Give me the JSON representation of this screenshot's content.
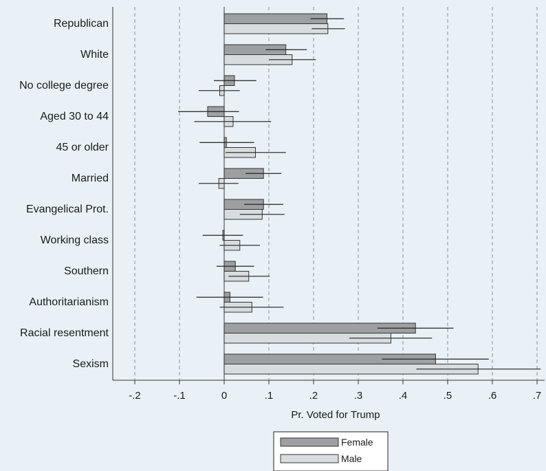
{
  "chart_data": {
    "type": "bar",
    "orientation": "horizontal",
    "xlabel": "Pr. Voted for Trump",
    "xlim": [
      -0.25,
      0.72
    ],
    "x_ticks": [
      {
        "value": -0.2,
        "label": "-.2"
      },
      {
        "value": -0.1,
        "label": "-.1"
      },
      {
        "value": 0,
        "label": "0"
      },
      {
        "value": 0.1,
        "label": ".1"
      },
      {
        "value": 0.2,
        "label": ".2"
      },
      {
        "value": 0.3,
        "label": ".3"
      },
      {
        "value": 0.4,
        "label": ".4"
      },
      {
        "value": 0.5,
        "label": ".5"
      },
      {
        "value": 0.6,
        "label": ".6"
      },
      {
        "value": 0.7,
        "label": ".7"
      }
    ],
    "grid": "vertical dashed",
    "legend_position": "bottom",
    "categories": [
      "Republican",
      "White",
      "No college degree",
      "Aged 30 to 44",
      "45 or older",
      "Married",
      "Evangelical Prot.",
      "Working class",
      "Southern",
      "Authoritarianism",
      "Racial resentment",
      "Sexism"
    ],
    "series": [
      {
        "name": "Female",
        "color": "#9d9fa1",
        "values": [
          0.23,
          0.138,
          0.023,
          -0.037,
          0.005,
          0.088,
          0.088,
          -0.003,
          0.025,
          0.013,
          0.428,
          0.473
        ],
        "ci_low": [
          0.193,
          0.093,
          -0.023,
          -0.103,
          -0.055,
          0.048,
          0.045,
          -0.048,
          -0.017,
          -0.062,
          0.343,
          0.353
        ],
        "ci_high": [
          0.268,
          0.185,
          0.072,
          0.033,
          0.067,
          0.128,
          0.132,
          0.042,
          0.067,
          0.087,
          0.513,
          0.592
        ]
      },
      {
        "name": "Male",
        "color": "#d8dcdf",
        "values": [
          0.232,
          0.152,
          -0.01,
          0.02,
          0.07,
          -0.012,
          0.085,
          0.035,
          0.055,
          0.062,
          0.373,
          0.568
        ],
        "ci_low": [
          0.196,
          0.1,
          -0.057,
          -0.067,
          0.003,
          -0.057,
          0.035,
          -0.01,
          0.01,
          -0.01,
          0.28,
          0.43
        ],
        "ci_high": [
          0.27,
          0.205,
          0.035,
          0.105,
          0.138,
          0.032,
          0.135,
          0.08,
          0.102,
          0.133,
          0.465,
          0.708
        ]
      }
    ]
  }
}
